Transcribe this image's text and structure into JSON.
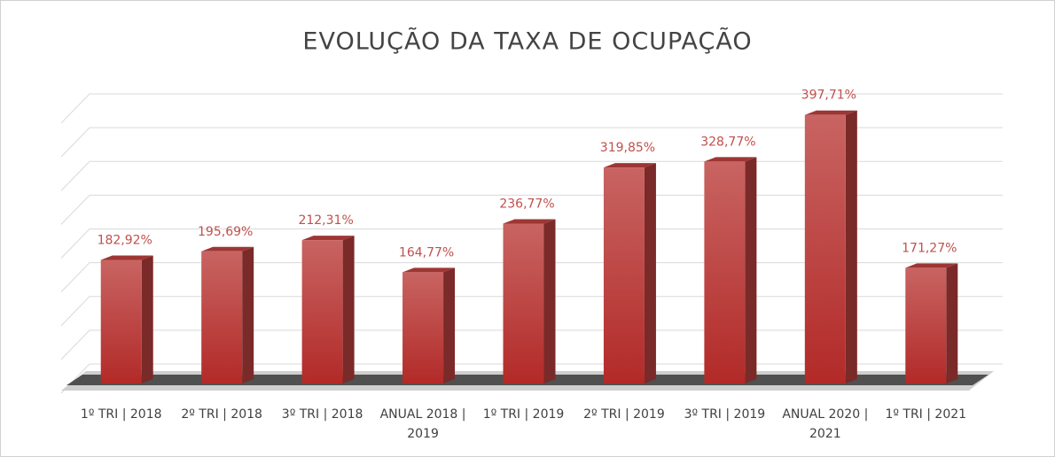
{
  "chart_data": {
    "type": "bar3d",
    "title": "EVOLUÇÃO DA TAXA DE OCUPAÇÃO",
    "categories": [
      "1º TRI | 2018",
      "2º TRI | 2018",
      "3º TRI | 2018",
      "ANUAL 2018 | 2019",
      "1º TRI | 2019",
      "2º TRI | 2019",
      "3º TRI | 2019",
      "ANUAL 2020 | 2021",
      "1º TRI | 2021"
    ],
    "values": [
      182.92,
      195.69,
      212.31,
      164.77,
      236.77,
      319.85,
      328.77,
      397.71,
      171.27
    ],
    "value_labels": [
      "182,92%",
      "195,69%",
      "212,31%",
      "164,77%",
      "236,77%",
      "319,85%",
      "328,77%",
      "397,71%",
      "171,27%"
    ],
    "color": "#c0403e",
    "ylim": [
      0,
      400
    ],
    "yticks": [
      0,
      50,
      100,
      150,
      200,
      250,
      300,
      350,
      400
    ],
    "grid": true
  }
}
